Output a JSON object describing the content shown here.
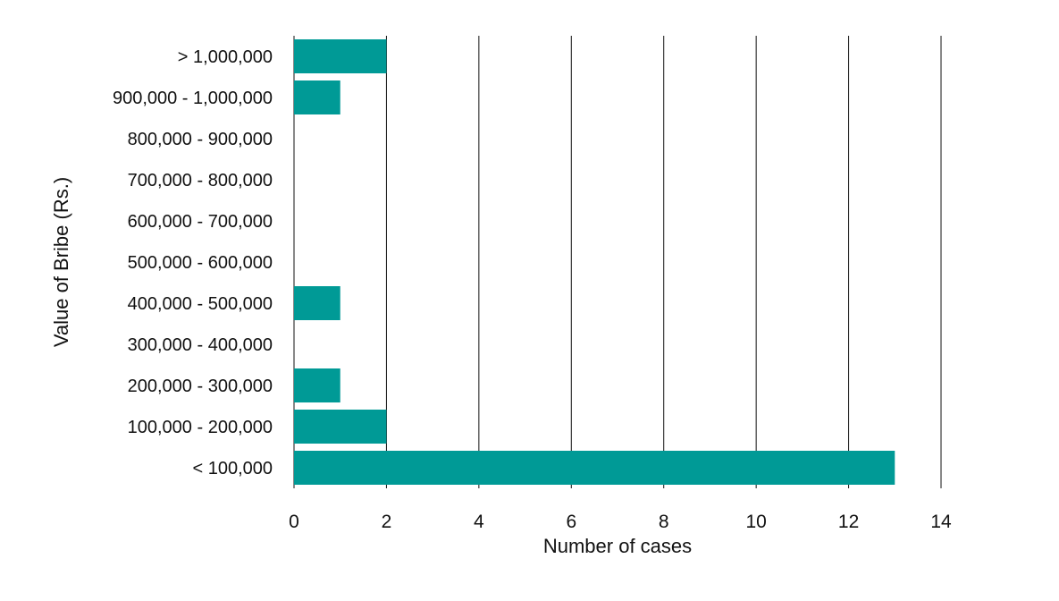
{
  "chart_data": {
    "type": "bar",
    "orientation": "horizontal",
    "categories": [
      "> 1,000,000",
      "900,000 - 1,000,000",
      "800,000 - 900,000",
      "700,000 - 800,000",
      "600,000 - 700,000",
      "500,000 - 600,000",
      "400,000 - 500,000",
      "300,000 - 400,000",
      "200,000 - 300,000",
      "100,000 - 200,000",
      "< 100,000"
    ],
    "values": [
      2,
      1,
      0,
      0,
      0,
      0,
      1,
      0,
      1,
      2,
      13
    ],
    "xlabel": "Number of cases",
    "ylabel": "Value of Bribe (Rs.)",
    "xlim": [
      0,
      14
    ],
    "xticks": [
      0,
      2,
      4,
      6,
      8,
      10,
      12,
      14
    ],
    "xtick_labels": [
      "0",
      "2",
      "4",
      "6",
      "8",
      "10",
      "12",
      "14"
    ],
    "grid": "vertical",
    "legend": "none",
    "colors": {
      "bar": "#009a96",
      "grid": "#111111",
      "axis": "#111111"
    }
  }
}
